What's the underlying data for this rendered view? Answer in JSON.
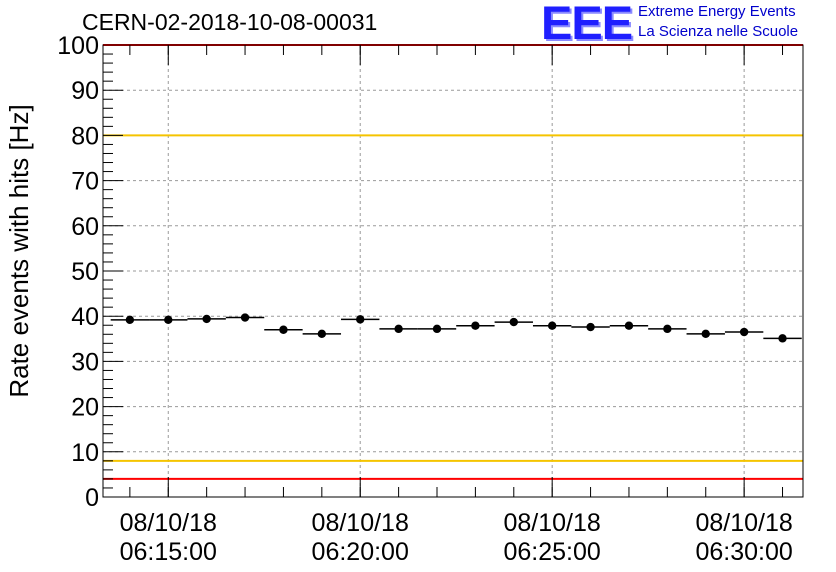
{
  "header": {
    "run_id": "CERN-02-2018-10-08-00031"
  },
  "logo": {
    "mark": "EEE",
    "line1": "Extreme Energy Events",
    "line2": "La Scienza nelle Scuole",
    "color": "#0000cc"
  },
  "colors": {
    "red_limit": "#ff0000",
    "yellow_limit": "#f5c400",
    "points": "#000000",
    "grid": "#9a9a9a"
  },
  "chart_data": {
    "type": "scatter",
    "title": "",
    "xlabel": "",
    "ylabel": "Rate events with hits [Hz]",
    "ylim": [
      0,
      100
    ],
    "yticks": [
      0,
      10,
      20,
      30,
      40,
      50,
      60,
      70,
      80,
      90,
      100
    ],
    "xlim": [
      "06:13:18",
      "06:31:32"
    ],
    "xticks": [
      {
        "time": "06:15:00",
        "date": "08/10/18",
        "label": "06:15:00"
      },
      {
        "time": "06:20:00",
        "date": "08/10/18",
        "label": "06:20:00"
      },
      {
        "time": "06:25:00",
        "date": "08/10/18",
        "label": "06:25:00"
      },
      {
        "time": "06:30:00",
        "date": "08/10/18",
        "label": "06:30:00"
      }
    ],
    "grid": true,
    "bin_width_s": 60,
    "points": [
      {
        "t": "06:14:00",
        "v": 39.2
      },
      {
        "t": "06:15:00",
        "v": 39.2
      },
      {
        "t": "06:16:00",
        "v": 39.4
      },
      {
        "t": "06:17:00",
        "v": 39.7
      },
      {
        "t": "06:18:00",
        "v": 37.0
      },
      {
        "t": "06:19:00",
        "v": 36.1
      },
      {
        "t": "06:20:00",
        "v": 39.3
      },
      {
        "t": "06:21:00",
        "v": 37.2
      },
      {
        "t": "06:22:00",
        "v": 37.2
      },
      {
        "t": "06:23:00",
        "v": 37.9
      },
      {
        "t": "06:24:00",
        "v": 38.7
      },
      {
        "t": "06:25:00",
        "v": 37.9
      },
      {
        "t": "06:26:00",
        "v": 37.6
      },
      {
        "t": "06:27:00",
        "v": 37.9
      },
      {
        "t": "06:28:00",
        "v": 37.2
      },
      {
        "t": "06:29:00",
        "v": 36.1
      },
      {
        "t": "06:30:00",
        "v": 36.5
      },
      {
        "t": "06:31:00",
        "v": 35.1
      }
    ],
    "reference_lines": [
      {
        "y": 100,
        "color": "red"
      },
      {
        "y": 80,
        "color": "yellow"
      },
      {
        "y": 8,
        "color": "yellow"
      },
      {
        "y": 4,
        "color": "red"
      }
    ]
  }
}
